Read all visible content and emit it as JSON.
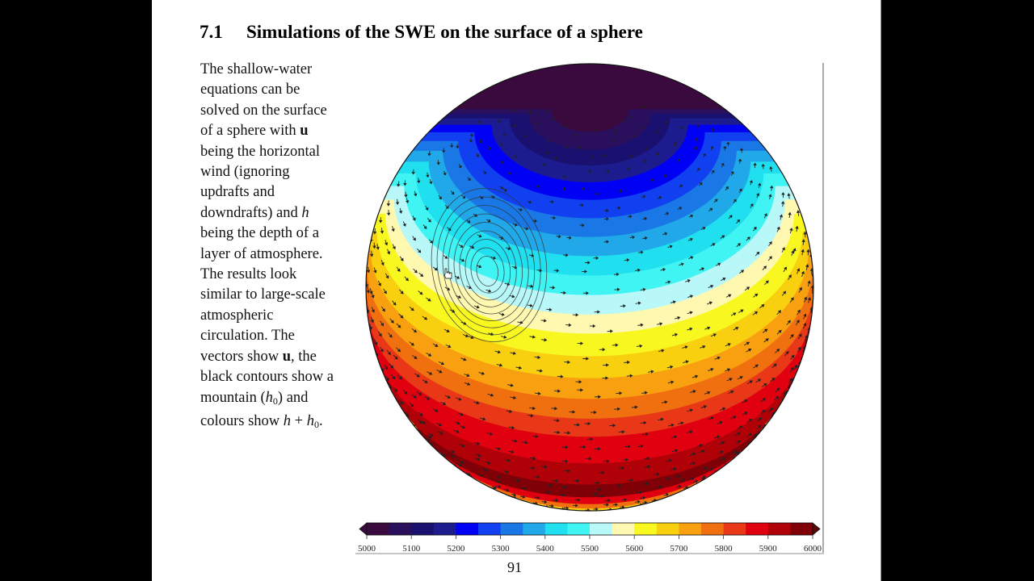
{
  "section": {
    "number": "7.1",
    "title": "Simulations of the SWE on the surface of a sphere"
  },
  "body_text": {
    "lines": [
      [
        {
          "t": "The shallow-water"
        }
      ],
      [
        {
          "t": "equations can be"
        }
      ],
      [
        {
          "t": "solved on the surface"
        }
      ],
      [
        {
          "t": "of a sphere with "
        },
        {
          "t": "u",
          "style": "bold"
        }
      ],
      [
        {
          "t": "being the horizontal"
        }
      ],
      [
        {
          "t": "wind (ignoring"
        }
      ],
      [
        {
          "t": "updrafts and"
        }
      ],
      [
        {
          "t": "downdrafts) and "
        },
        {
          "t": "h",
          "style": "italic"
        }
      ],
      [
        {
          "t": "being the depth of a"
        }
      ],
      [
        {
          "t": "layer of atmosphere."
        }
      ],
      [
        {
          "t": "The results look"
        }
      ],
      [
        {
          "t": "similar to large-scale"
        }
      ],
      [
        {
          "t": "atmospheric"
        }
      ],
      [
        {
          "t": "circulation. The"
        }
      ],
      [
        {
          "t": "vectors show "
        },
        {
          "t": "u",
          "style": "bold"
        },
        {
          "t": ", the"
        }
      ],
      [
        {
          "t": "black contours show a"
        }
      ],
      [
        {
          "t": "mountain ("
        },
        {
          "t": "h",
          "style": "italic"
        },
        {
          "t": "0",
          "style": "sub"
        },
        {
          "t": ") and"
        }
      ],
      [
        {
          "t": "colours show "
        },
        {
          "t": "h",
          "style": "italic"
        },
        {
          "t": " + "
        },
        {
          "t": "h",
          "style": "italic"
        },
        {
          "t": "0",
          "style": "sub"
        },
        {
          "t": "."
        }
      ]
    ]
  },
  "page_number": "91",
  "chart_data": {
    "type": "heatmap",
    "title": "",
    "description": "Filled contour plot of h + h0 on an orthographic view of a sphere (north pole tilted toward viewer), with wind vectors u and black contours of an isolated mountain h0",
    "colorbar": {
      "min": 5000,
      "max": 6000,
      "step": 50,
      "ticks": [
        5000,
        5100,
        5200,
        5300,
        5400,
        5500,
        5600,
        5700,
        5800,
        5900,
        6000
      ],
      "tick_labels": [
        "5000",
        "5100",
        "5200",
        "5300",
        "5400",
        "5500",
        "5600",
        "5700",
        "5800",
        "5900",
        "6000"
      ],
      "extend": "both",
      "colors": [
        "#3a0a3e",
        "#2a0f5c",
        "#1a1070",
        "#1c1c8e",
        "#0000f5",
        "#1040f0",
        "#1a78e6",
        "#20a8e8",
        "#20e0f0",
        "#40f4f4",
        "#b8f8f8",
        "#fff8b0",
        "#f8f820",
        "#f8d010",
        "#f8a010",
        "#f07010",
        "#e83818",
        "#e00010",
        "#b00008",
        "#800008",
        "#5a0808"
      ]
    },
    "field": {
      "variable": "h + h0",
      "pattern": "zonal bands: minimum (~5000) at north pole, maximum (~5950-6000) near the equator, decreasing toward ~5400 in southern visible limb",
      "band_latitudes_deg": [
        90,
        80,
        74,
        69,
        64,
        59,
        54,
        49,
        44,
        39,
        34,
        29,
        24,
        18,
        12,
        6,
        0,
        -6,
        -16,
        -26,
        -34,
        -40,
        -46,
        -52,
        -58
      ],
      "band_values": [
        5025,
        5075,
        5125,
        5175,
        5225,
        5275,
        5325,
        5375,
        5425,
        5475,
        5525,
        5575,
        5625,
        5675,
        5725,
        5775,
        5825,
        5875,
        5925,
        5975,
        5875,
        5775,
        5675,
        5575,
        5475
      ]
    },
    "mountain": {
      "center_lat_deg": 30,
      "center_lon_deg": -30,
      "contour_count": 9
    },
    "projection": {
      "type": "orthographic",
      "tilt_deg": 36
    }
  }
}
